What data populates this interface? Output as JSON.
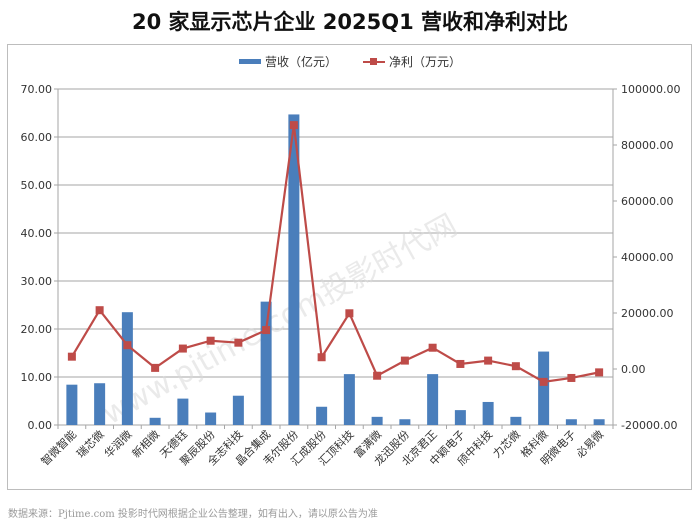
{
  "title": "20 家显示芯片企业 2025Q1 营收和净利对比",
  "legend": {
    "revenue_label": "营收（亿元）",
    "profit_label": "净利（万元）"
  },
  "colors": {
    "revenue": "#4a7ebb",
    "profit": "#be4b48",
    "grid": "#a6a6a6"
  },
  "watermark": "www.pjtime.com投影时代网",
  "footer": "数据来源：Pjtime.com 投影时代网根据企业公告整理，如有出入，请以原公告为准",
  "chart_data": {
    "type": "bar+line",
    "title": "20 家显示芯片企业 2025Q1 营收和净利对比",
    "categories": [
      "智微智能",
      "瑞芯微",
      "华润微",
      "新相微",
      "天德钰",
      "聚辰股份",
      "全志科技",
      "晶合集成",
      "韦尔股份",
      "汇成股份",
      "汇顶科技",
      "富满微",
      "龙迅股份",
      "北京君正",
      "中颖电子",
      "颀中科技",
      "力芯微",
      "格科微",
      "明微电子",
      "必易微"
    ],
    "series": [
      {
        "name": "营收（亿元）",
        "type": "bar",
        "axis": "left",
        "values": [
          8.4,
          8.7,
          23.5,
          1.5,
          5.5,
          2.6,
          6.1,
          25.7,
          64.7,
          3.8,
          10.6,
          1.7,
          1.2,
          10.6,
          3.1,
          4.8,
          1.7,
          15.3,
          1.2,
          1.2
        ]
      },
      {
        "name": "净利（万元）",
        "type": "line",
        "axis": "right",
        "values": [
          4400,
          21000,
          8500,
          400,
          7300,
          10100,
          9400,
          13900,
          87100,
          4200,
          19900,
          -2400,
          3000,
          7600,
          1800,
          3000,
          1000,
          -4600,
          -3200,
          -1200
        ]
      }
    ],
    "left_axis": {
      "ylim": [
        0,
        70
      ],
      "ticks": [
        "0.00",
        "10.00",
        "20.00",
        "30.00",
        "40.00",
        "50.00",
        "60.00",
        "70.00"
      ]
    },
    "right_axis": {
      "ylim": [
        -20000,
        100000
      ],
      "ticks": [
        "-20000.00",
        "0.00",
        "20000.00",
        "40000.00",
        "60000.00",
        "80000.00",
        "100000.00"
      ]
    },
    "legend_position": "top",
    "grid": true
  }
}
